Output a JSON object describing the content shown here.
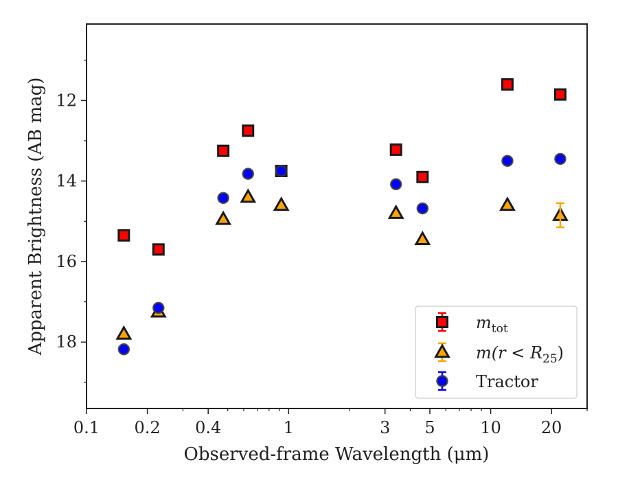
{
  "chart_data": {
    "type": "scatter",
    "title": "",
    "xlabel": "Observed-frame Wavelength (μm)",
    "ylabel": "Apparent Brightness (AB mag)",
    "xscale": "log",
    "xlim": [
      0.1,
      30
    ],
    "ylim": [
      19.65,
      10.1
    ],
    "y_inverted": true,
    "grid": false,
    "legend_position": "lower-right",
    "xticks": [
      {
        "value": 0.1,
        "label": "0.1"
      },
      {
        "value": 0.2,
        "label": "0.2"
      },
      {
        "value": 0.4,
        "label": "0.4"
      },
      {
        "value": 1,
        "label": "1"
      },
      {
        "value": 3,
        "label": "3"
      },
      {
        "value": 5,
        "label": "5"
      },
      {
        "value": 10,
        "label": "10"
      },
      {
        "value": 20,
        "label": "20"
      }
    ],
    "yticks": [
      {
        "value": 12,
        "label": "12"
      },
      {
        "value": 14,
        "label": "14"
      },
      {
        "value": 16,
        "label": "16"
      },
      {
        "value": 18,
        "label": "18"
      }
    ],
    "series": [
      {
        "name": "m_tot",
        "legend_main": "m",
        "legend_sub": "tot",
        "marker": "square",
        "color": "#ff0000",
        "edge": "#1a1a1a",
        "points": [
          {
            "x": 0.153,
            "y": 15.35,
            "err": 0.03
          },
          {
            "x": 0.227,
            "y": 15.7,
            "err": 0.03
          },
          {
            "x": 0.475,
            "y": 13.25,
            "err": 0.02
          },
          {
            "x": 0.63,
            "y": 12.75,
            "err": 0.02
          },
          {
            "x": 0.92,
            "y": 13.75,
            "err": 0.02
          },
          {
            "x": 3.4,
            "y": 13.22,
            "err": 0.02
          },
          {
            "x": 4.6,
            "y": 13.9,
            "err": 0.03
          },
          {
            "x": 12.1,
            "y": 11.6,
            "err": 0.02
          },
          {
            "x": 22.1,
            "y": 11.85,
            "err": 0.03
          }
        ]
      },
      {
        "name": "m(r < R25)",
        "legend_main": "m(r < R",
        "legend_sub": "25",
        "legend_tail": ")",
        "marker": "triangle",
        "color": "#ffa500",
        "edge": "#1a1a1a",
        "points": [
          {
            "x": 0.153,
            "y": 17.8,
            "err": 0.03
          },
          {
            "x": 0.227,
            "y": 17.25,
            "err": 0.03
          },
          {
            "x": 0.475,
            "y": 14.95,
            "err": 0.02
          },
          {
            "x": 0.63,
            "y": 14.4,
            "err": 0.02
          },
          {
            "x": 0.92,
            "y": 14.6,
            "err": 0.02
          },
          {
            "x": 3.4,
            "y": 14.8,
            "err": 0.03
          },
          {
            "x": 4.6,
            "y": 15.45,
            "err": 0.04
          },
          {
            "x": 12.1,
            "y": 14.6,
            "err": 0.05
          },
          {
            "x": 22.1,
            "y": 14.85,
            "err": 0.3
          }
        ]
      },
      {
        "name": "Tractor",
        "legend_main": "Tractor",
        "marker": "circle",
        "color": "#0000ff",
        "edge": "#3a3a3a",
        "points": [
          {
            "x": 0.153,
            "y": 18.18,
            "err": 0.04
          },
          {
            "x": 0.227,
            "y": 17.15,
            "err": 0.04
          },
          {
            "x": 0.475,
            "y": 14.42,
            "err": 0.04
          },
          {
            "x": 0.63,
            "y": 13.82,
            "err": 0.04
          },
          {
            "x": 0.92,
            "y": 13.75,
            "err": 0.04
          },
          {
            "x": 3.4,
            "y": 14.08,
            "err": 0.04
          },
          {
            "x": 4.6,
            "y": 14.68,
            "err": 0.04
          },
          {
            "x": 12.1,
            "y": 13.5,
            "err": 0.04
          },
          {
            "x": 22.1,
            "y": 13.45,
            "err": 0.04
          }
        ]
      }
    ]
  }
}
